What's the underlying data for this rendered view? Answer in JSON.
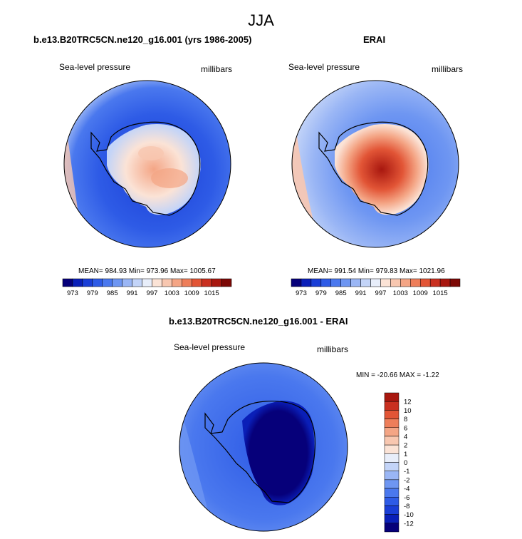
{
  "main_title": "JJA",
  "panels": [
    {
      "title": "b.e13.B20TRC5CN.ne120_g16.001 (yrs 1986-2005)",
      "left_label": "Sea-level pressure",
      "right_label": "millibars",
      "stats": "MEAN= 984.93  Min= 973.96  Max= 1005.67"
    },
    {
      "title": "ERAI",
      "left_label": "Sea-level pressure",
      "right_label": "millibars",
      "stats": "MEAN= 991.54  Min= 979.83  Max= 1021.96"
    },
    {
      "title": "b.e13.B20TRC5CN.ne120_g16.001 - ERAI",
      "left_label": "Sea-level pressure",
      "right_label": "millibars",
      "stats": "MIN = -20.66 MAX =  -1.22"
    }
  ],
  "colors": {
    "pressure_scale": [
      "#06007a",
      "#0a1fb8",
      "#1a3ed6",
      "#2e5be6",
      "#4a78ee",
      "#6e96f2",
      "#9ab6f5",
      "#c3d4f8",
      "#e8eefa",
      "#fbe3d6",
      "#f8c7b0",
      "#f4a585",
      "#ee7e5a",
      "#e25536",
      "#c93020",
      "#a8170f",
      "#7c0805"
    ],
    "diff_scale": [
      "#06007a",
      "#0a1fb8",
      "#1a3ed6",
      "#2e5be6",
      "#4a78ee",
      "#6e96f2",
      "#9ab6f5",
      "#c3d4f8",
      "#e8eefa",
      "#fbe3d6",
      "#f8c7b0",
      "#f4a585",
      "#ee7e5a",
      "#e25536",
      "#c93020",
      "#a8170f",
      "#7c0805"
    ]
  },
  "chart_data": [
    {
      "type": "heatmap",
      "title": "b.e13.B20TRC5CN.ne120_g16.001 (yrs 1986-2005)",
      "variable": "Sea-level pressure",
      "units": "millibars",
      "mean": 984.93,
      "min": 973.96,
      "max": 1005.67,
      "colorbar_ticks": [
        973,
        979,
        985,
        991,
        997,
        1003,
        1009,
        1015
      ]
    },
    {
      "type": "heatmap",
      "title": "ERAI",
      "variable": "Sea-level pressure",
      "units": "millibars",
      "mean": 991.54,
      "min": 979.83,
      "max": 1021.96,
      "colorbar_ticks": [
        973,
        979,
        985,
        991,
        997,
        1003,
        1009,
        1015
      ]
    },
    {
      "type": "heatmap",
      "title": "b.e13.B20TRC5CN.ne120_g16.001 - ERAI",
      "variable": "Sea-level pressure",
      "units": "millibars",
      "min": -20.66,
      "max": -1.22,
      "colorbar_ticks": [
        12,
        10,
        8,
        6,
        4,
        2,
        1,
        0,
        -1,
        -2,
        -4,
        -6,
        -8,
        -10,
        -12
      ]
    }
  ]
}
